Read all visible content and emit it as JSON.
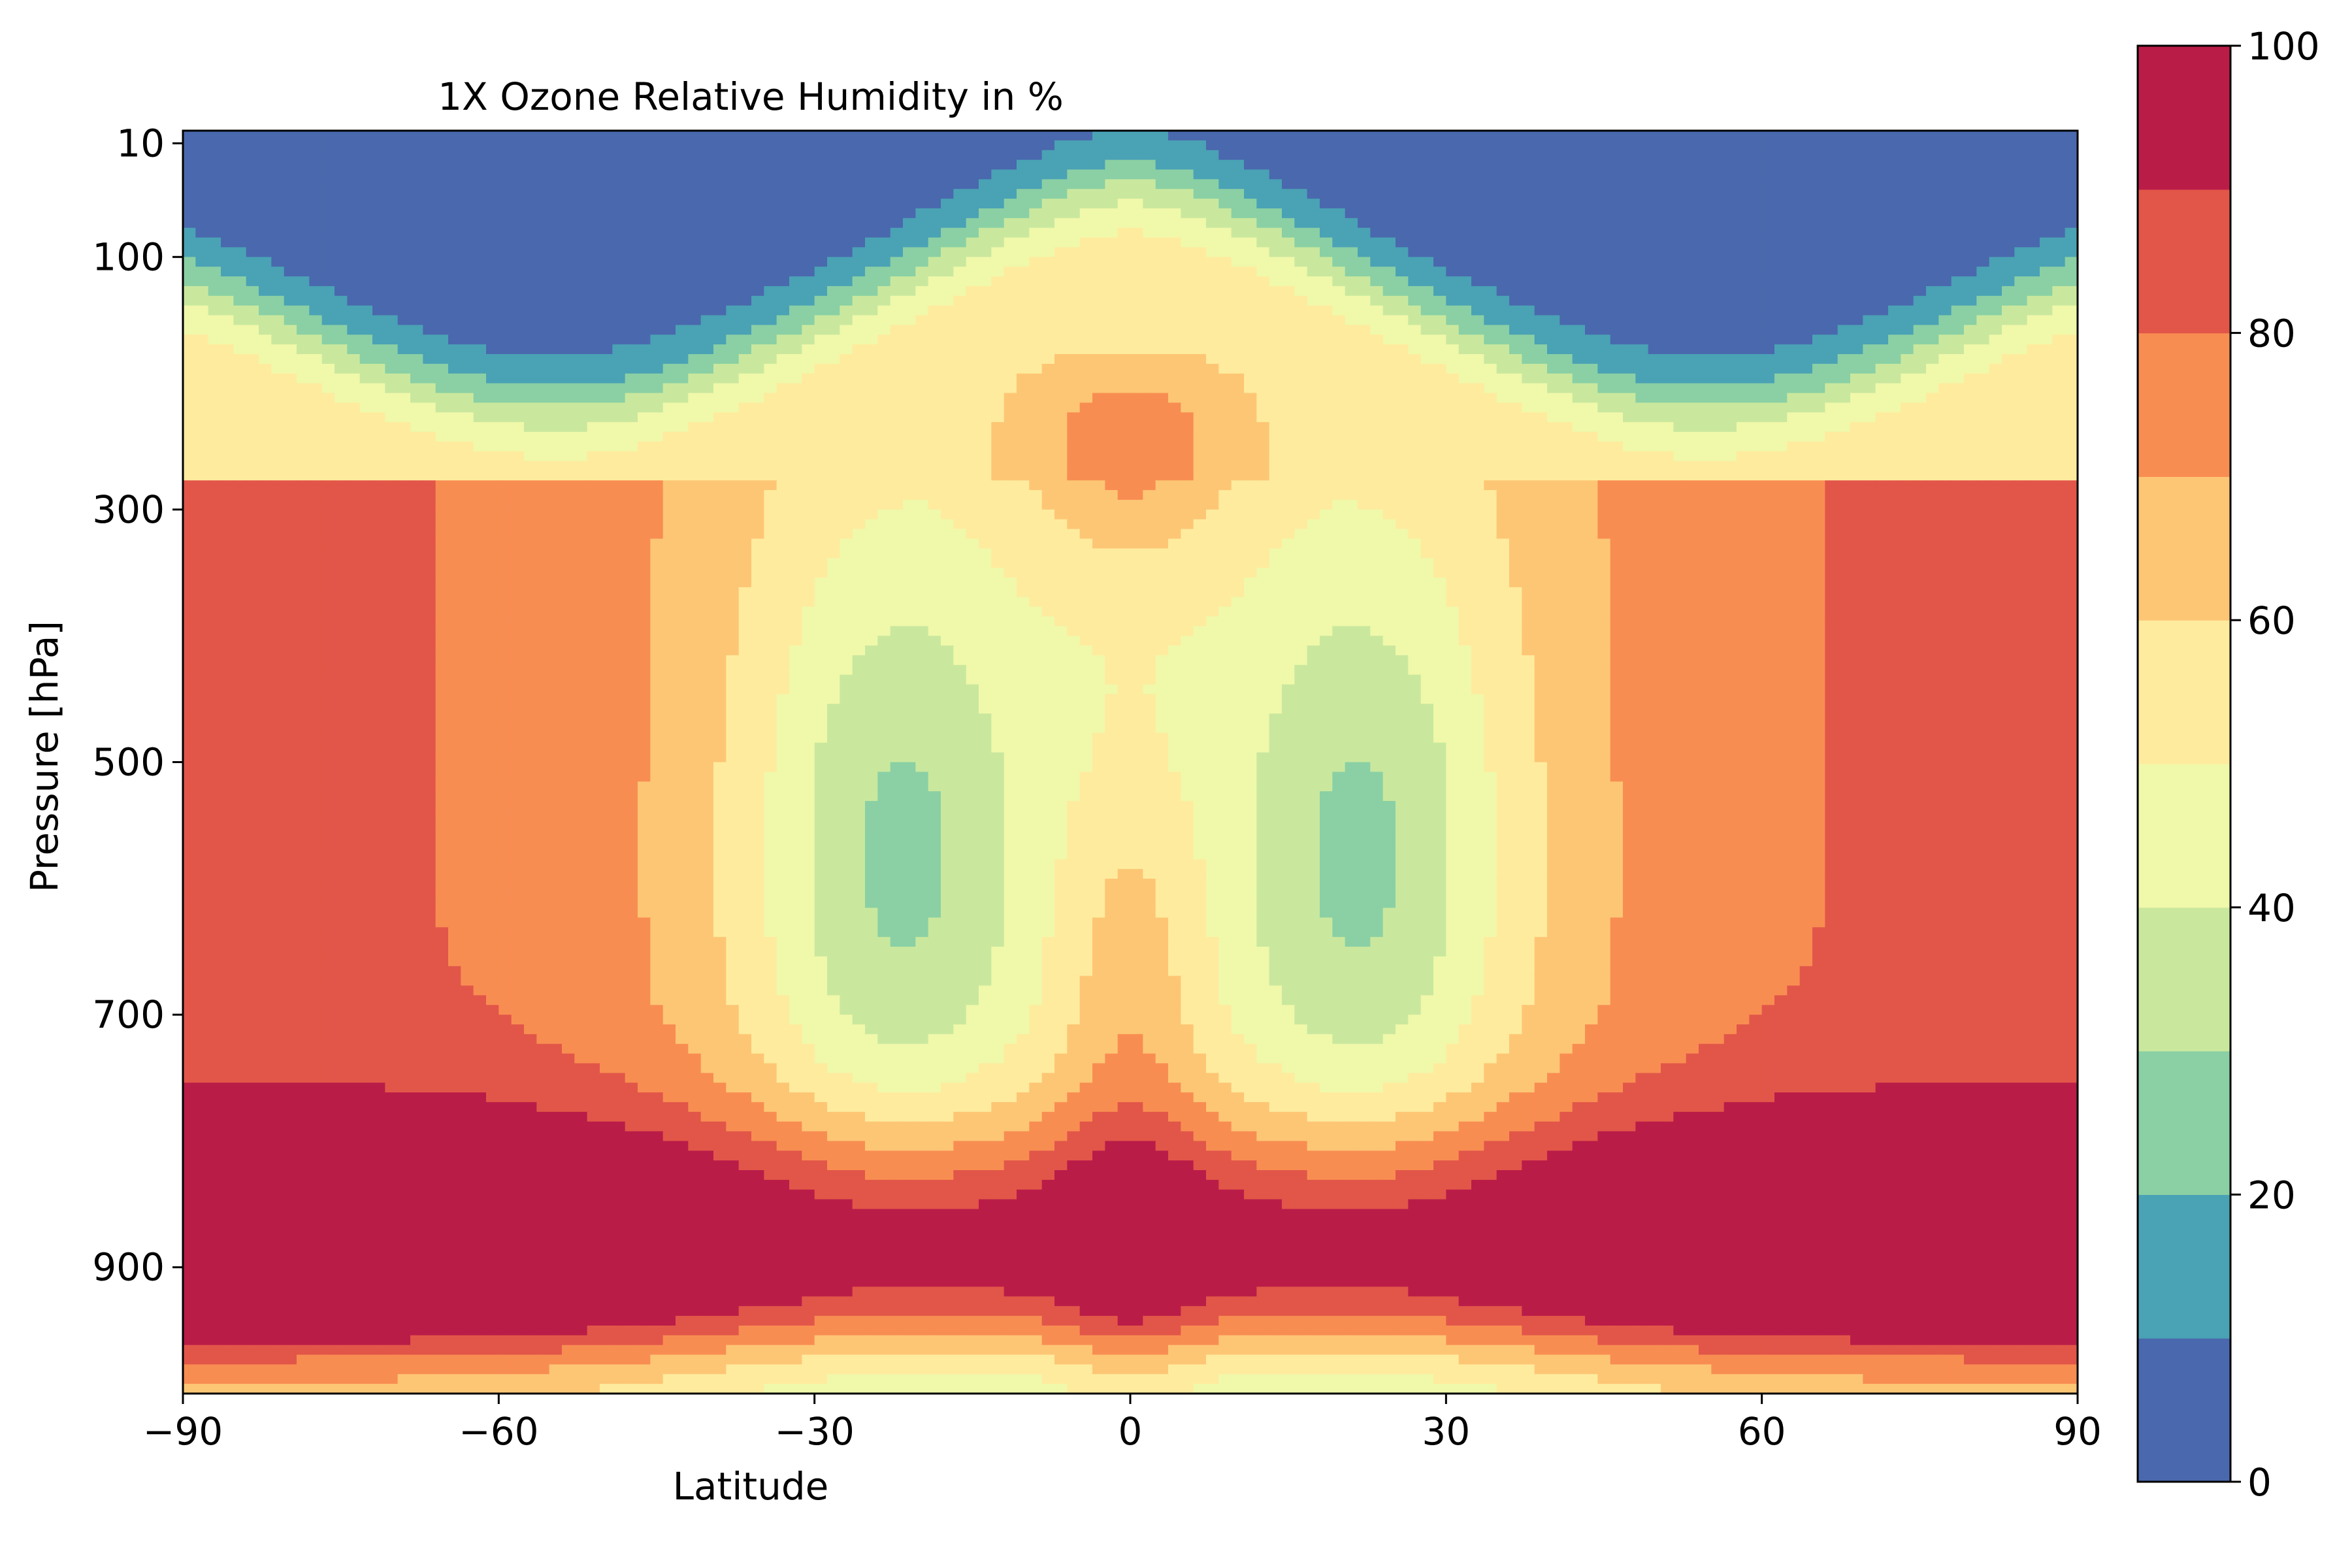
{
  "chart_data": {
    "type": "contourf",
    "title": "1X Ozone Relative Humidity in %",
    "xlabel": "Latitude",
    "ylabel": "Pressure [hPa]",
    "xlim": [
      -90,
      90
    ],
    "ylim": [
      1000,
      0
    ],
    "xticks": [
      -90,
      -60,
      -30,
      0,
      30,
      60,
      90
    ],
    "xtick_labels": [
      "−90",
      "−60",
      "−30",
      "0",
      "30",
      "60",
      "90"
    ],
    "yticks": [
      10,
      100,
      300,
      500,
      700,
      900
    ],
    "ytick_labels": [
      "10",
      "100",
      "300",
      "500",
      "700",
      "900"
    ],
    "colorbar": {
      "levels": [
        0,
        10,
        20,
        30,
        40,
        50,
        60,
        70,
        80,
        90,
        100
      ],
      "ticks": [
        0,
        20,
        40,
        60,
        80,
        100
      ],
      "tick_labels": [
        "0",
        "20",
        "40",
        "60",
        "80",
        "100"
      ],
      "colors": [
        "#4a68ad",
        "#4aa2b5",
        "#8ad0a4",
        "#c9e89e",
        "#f0f8aa",
        "#feeb9e",
        "#fdc675",
        "#f88d52",
        "#e25649",
        "#ba1c48"
      ]
    },
    "grid": false,
    "legend": "none",
    "description": "Zonal-mean relative humidity (%) versus latitude and pressure: values below 10% above 100 hPa, about 90-100% between ~820 and ~940 hPa, minima of 20-30% near 15-25 degrees latitude in both hemispheres around 400-750 hPa."
  }
}
